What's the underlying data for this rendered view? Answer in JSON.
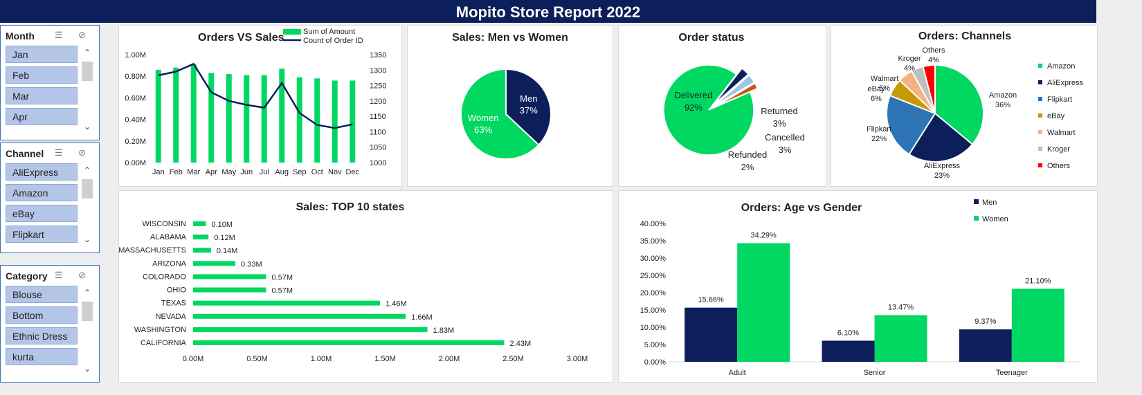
{
  "header": {
    "title": "Mopito Store Report 2022"
  },
  "slicers": [
    {
      "title": "Month",
      "items": [
        "Jan",
        "Feb",
        "Mar",
        "Apr"
      ]
    },
    {
      "title": "Channel",
      "items": [
        "AliExpress",
        "Amazon",
        "eBay",
        "Flipkart"
      ]
    },
    {
      "title": "Category",
      "items": [
        "Blouse",
        "Bottom",
        "Ethnic Dress",
        "kurta"
      ]
    }
  ],
  "colors": {
    "green": "#00d862",
    "navy": "#0c1f5a",
    "blue": "#2e75b6",
    "gold": "#c59a06",
    "peach": "#f4b183",
    "grey": "#bfbfbf",
    "red": "#ff0000"
  },
  "chart_data": [
    {
      "type": "bar+line",
      "title": "Orders VS Sales",
      "categories": [
        "Jan",
        "Feb",
        "Mar",
        "Apr",
        "May",
        "Jun",
        "Jul",
        "Aug",
        "Sep",
        "Oct",
        "Nov",
        "Dec"
      ],
      "series": [
        {
          "name": "Sum of Amount",
          "type": "bar",
          "axis": "left",
          "values": [
            0.86,
            0.88,
            0.91,
            0.83,
            0.82,
            0.81,
            0.81,
            0.87,
            0.79,
            0.78,
            0.76,
            0.76
          ]
        },
        {
          "name": "Count of Order ID",
          "type": "line",
          "axis": "right",
          "values": [
            1283,
            1295,
            1320,
            1228,
            1200,
            1187,
            1178,
            1258,
            1161,
            1122,
            1112,
            1124
          ]
        }
      ],
      "yticks_left": [
        "0.00M",
        "0.20M",
        "0.40M",
        "0.60M",
        "0.80M",
        "1.00M"
      ],
      "ylim_left": [
        0,
        1.0
      ],
      "yticks_right": [
        "1000",
        "1050",
        "1100",
        "1150",
        "1200",
        "1250",
        "1300",
        "1350"
      ],
      "ylim_right": [
        1000,
        1350
      ]
    },
    {
      "type": "pie",
      "title": "Sales: Men vs Women",
      "slices": [
        {
          "name": "Men",
          "value": 37,
          "label": "37%"
        },
        {
          "name": "Women",
          "value": 63,
          "label": "63%"
        }
      ]
    },
    {
      "type": "pie",
      "title": "Order status",
      "slices": [
        {
          "name": "Delivered",
          "value": 92,
          "label": "92%"
        },
        {
          "name": "Returned",
          "value": 3,
          "label": "3%"
        },
        {
          "name": "Cancelled",
          "value": 3,
          "label": "3%"
        },
        {
          "name": "Refunded",
          "value": 2,
          "label": "2%"
        }
      ]
    },
    {
      "type": "pie",
      "title": "Orders: Channels",
      "legend": "right",
      "slices": [
        {
          "name": "Amazon",
          "value": 36,
          "label": "36%"
        },
        {
          "name": "AliExpress",
          "value": 23,
          "label": "23%"
        },
        {
          "name": "Flipkart",
          "value": 22,
          "label": "22%"
        },
        {
          "name": "eBay",
          "value": 6,
          "label": "6%"
        },
        {
          "name": "Walmart",
          "value": 5,
          "label": "5%"
        },
        {
          "name": "Kroger",
          "value": 4,
          "label": "4%"
        },
        {
          "name": "Others",
          "value": 4,
          "label": "4%"
        }
      ]
    },
    {
      "type": "bar",
      "orientation": "horizontal",
      "title": "Sales: TOP 10 states",
      "categories": [
        "WISCONSIN",
        "ALABAMA",
        "MASSACHUSETTS",
        "ARIZONA",
        "COLORADO",
        "OHIO",
        "TEXAS",
        "NEVADA",
        "WASHINGTON",
        "CALIFORNIA"
      ],
      "values": [
        0.1,
        0.12,
        0.14,
        0.33,
        0.57,
        0.57,
        1.46,
        1.66,
        1.83,
        2.43
      ],
      "value_labels": [
        "0.10M",
        "0.12M",
        "0.14M",
        "0.33M",
        "0.57M",
        "0.57M",
        "1.46M",
        "1.66M",
        "1.83M",
        "2.43M"
      ],
      "xticks": [
        "0.00M",
        "0.50M",
        "1.00M",
        "1.50M",
        "2.00M",
        "2.50M",
        "3.00M"
      ],
      "xlim": [
        0,
        3.0
      ]
    },
    {
      "type": "bar",
      "title": "Orders: Age vs Gender",
      "legend": "top-right",
      "categories": [
        "Adult",
        "Senior",
        "Teenager"
      ],
      "series": [
        {
          "name": "Men",
          "values": [
            15.66,
            6.1,
            9.37
          ],
          "labels": [
            "15.66%",
            "6.10%",
            "9.37%"
          ]
        },
        {
          "name": "Women",
          "values": [
            34.29,
            13.47,
            21.1
          ],
          "labels": [
            "34.29%",
            "13.47%",
            "21.10%"
          ]
        }
      ],
      "yticks": [
        "0.00%",
        "5.00%",
        "10.00%",
        "15.00%",
        "20.00%",
        "25.00%",
        "30.00%",
        "35.00%",
        "40.00%"
      ],
      "ylim": [
        0,
        40
      ]
    }
  ]
}
